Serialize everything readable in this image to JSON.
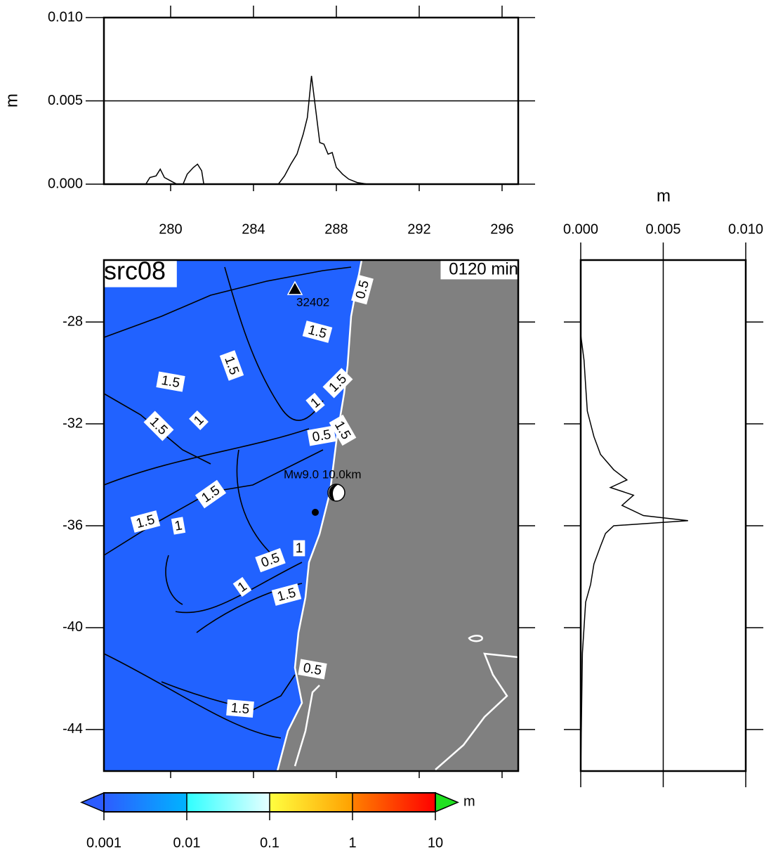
{
  "chart_data": [
    {
      "type": "line",
      "ylabel": "m",
      "xlim": [
        276.78,
        296.78
      ],
      "ylim": [
        0,
        0.01
      ],
      "xticks": [
        280,
        284,
        288,
        292,
        296
      ],
      "yticks": [
        {
          "value": 0,
          "label": "0.000"
        },
        {
          "value": 0.005,
          "label": "0.005"
        },
        {
          "value": 0.01,
          "label": "0.010"
        }
      ],
      "grid": true,
      "color": "#000000",
      "x": [
        278.8,
        279.0,
        279.3,
        279.5,
        279.7,
        280.0,
        280.3,
        280.6,
        280.8,
        281.1,
        281.3,
        281.5,
        281.6,
        285.2,
        285.5,
        285.8,
        286.1,
        286.4,
        286.6,
        286.8,
        287.0,
        287.2,
        287.4,
        287.6,
        287.8,
        288.0,
        288.3,
        288.6,
        289.0,
        289.5
      ],
      "values": [
        0,
        0.0004,
        0.0005,
        0.0009,
        0.0004,
        0.0002,
        0,
        0,
        0.0006,
        0.001,
        0.0012,
        0.0008,
        0,
        0,
        0.0005,
        0.0012,
        0.0018,
        0.003,
        0.004,
        0.0065,
        0.0045,
        0.0025,
        0.0024,
        0.0018,
        0.0019,
        0.001,
        0.0006,
        0.0003,
        0.0001,
        0
      ]
    },
    {
      "type": "line-vertical",
      "xlabel": "m",
      "xlim": [
        0,
        0.01
      ],
      "ylim": [
        -45.63,
        -25.57
      ],
      "xticks": [
        {
          "value": 0,
          "label": "0.000"
        },
        {
          "value": 0.005,
          "label": "0.005"
        },
        {
          "value": 0.01,
          "label": "0.010"
        }
      ],
      "yticks": [
        -28,
        -32,
        -36,
        -40,
        -44
      ],
      "grid": true,
      "color": "#000000",
      "y": [
        -28.5,
        -29.5,
        -30.5,
        -31.5,
        -32.5,
        -33.2,
        -33.8,
        -34.2,
        -34.5,
        -34.8,
        -35.2,
        -35.6,
        -35.8,
        -36.0,
        -36.3,
        -36.8,
        -37.5,
        -38.3,
        -39.0,
        -40.0,
        -41.0,
        -45.6
      ],
      "values": [
        0,
        0.0002,
        0.0003,
        0.0004,
        0.0008,
        0.0012,
        0.002,
        0.0028,
        0.0018,
        0.0032,
        0.0025,
        0.0038,
        0.0065,
        0.002,
        0.0015,
        0.0012,
        0.0008,
        0.0006,
        0.0003,
        0.0002,
        0.0001,
        0
      ]
    },
    {
      "type": "map",
      "title": "src08",
      "time_label": "0120 min",
      "xlim": [
        276.78,
        296.78
      ],
      "ylim": [
        -45.63,
        -25.57
      ],
      "xticks": [
        280,
        284,
        288,
        292,
        296
      ],
      "yticks": [
        -28,
        -32,
        -36,
        -40,
        -44
      ],
      "sea_color": "#2162ff",
      "land_color": "#808080",
      "station": {
        "name": "32402",
        "lon": 286.0,
        "lat": -26.7
      },
      "epicenter": {
        "label": "Mw9.0 10.0km",
        "lon": 288.0,
        "lat": -34.7
      },
      "contour_labels": [
        "1.5",
        "1.5",
        "1.5",
        "1.5",
        "1",
        "1",
        "1.5",
        "0.5",
        "1.5",
        "1.5",
        "1.5",
        "1",
        "0.5",
        "1",
        "1",
        "1.5",
        "1.5",
        "0.5",
        "0.5"
      ]
    },
    {
      "type": "colorbar",
      "unit": "m",
      "scale": "log",
      "lim": [
        0.001,
        10
      ],
      "ticks": [
        0.001,
        0.01,
        0.1,
        1,
        10
      ],
      "segments": [
        [
          "#2d5cff",
          "#00b4ff"
        ],
        [
          "#2fffff",
          "#e6ffff"
        ],
        [
          "#ffff40",
          "#ffa000"
        ],
        [
          "#ff8000",
          "#ff0000"
        ]
      ],
      "under_color": "#2d5cff",
      "over_color": "#20e020"
    }
  ]
}
